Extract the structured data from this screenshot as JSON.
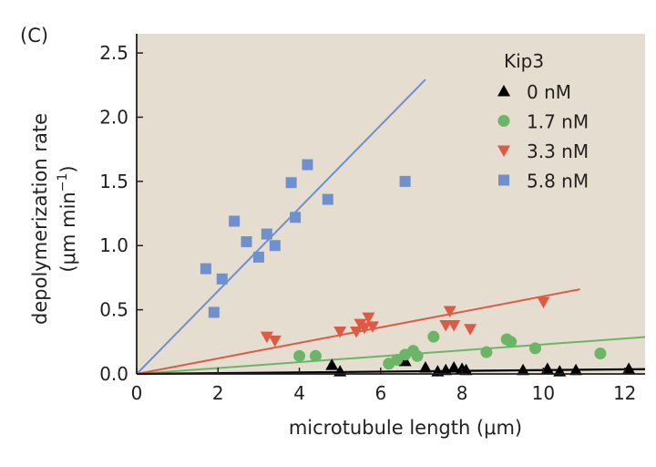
{
  "panel_label": "(C)",
  "chart_data": {
    "type": "scatter",
    "title": "",
    "xlabel": "microtubule length (μm)",
    "ylabel_line1": "depolymerization rate",
    "ylabel_line2_prefix": "(μm min",
    "ylabel_line2_sup": "−1",
    "ylabel_line2_suffix": ")",
    "xlim": [
      0,
      12.5
    ],
    "ylim": [
      0,
      2.65
    ],
    "xticks": [
      0,
      2,
      4,
      6,
      8,
      10,
      12
    ],
    "xtick_labels": [
      "0",
      "2",
      "4",
      "6",
      "8",
      "10",
      "12"
    ],
    "yticks": [
      0,
      0.5,
      1.0,
      1.5,
      2.0,
      2.5
    ],
    "ytick_labels": [
      "0.0",
      "0.5",
      "1.0",
      "1.5",
      "2.0",
      "2.5"
    ],
    "grid": false,
    "background": "#e5ddd0",
    "legend": {
      "title": "Kip3",
      "placement": "top-right"
    },
    "series": [
      {
        "name": "0 nM",
        "marker": "triangle-up",
        "color": "#000000",
        "fit_slope": 0.003,
        "fit_x_range": [
          0,
          12.5
        ],
        "points": [
          [
            4.8,
            0.07
          ],
          [
            5.0,
            0.02
          ],
          [
            6.6,
            0.1
          ],
          [
            7.1,
            0.05
          ],
          [
            7.4,
            0.02
          ],
          [
            7.6,
            0.03
          ],
          [
            7.8,
            0.05
          ],
          [
            8.0,
            0.04
          ],
          [
            8.1,
            0.03
          ],
          [
            9.5,
            0.03
          ],
          [
            10.1,
            0.04
          ],
          [
            10.4,
            0.02
          ],
          [
            10.8,
            0.03
          ],
          [
            12.1,
            0.04
          ]
        ]
      },
      {
        "name": "1.7 nM",
        "marker": "circle",
        "color": "#6cb567",
        "fit_slope": 0.023,
        "fit_x_range": [
          0,
          12.5
        ],
        "points": [
          [
            4.0,
            0.14
          ],
          [
            4.4,
            0.14
          ],
          [
            6.2,
            0.08
          ],
          [
            6.4,
            0.11
          ],
          [
            6.6,
            0.15
          ],
          [
            6.8,
            0.18
          ],
          [
            6.9,
            0.14
          ],
          [
            7.3,
            0.29
          ],
          [
            8.6,
            0.17
          ],
          [
            9.1,
            0.27
          ],
          [
            9.2,
            0.25
          ],
          [
            9.8,
            0.2
          ],
          [
            11.4,
            0.16
          ]
        ]
      },
      {
        "name": "3.3 nM",
        "marker": "triangle-down",
        "color": "#de5a44",
        "fit_slope": 0.0605,
        "fit_x_range": [
          0,
          10.9
        ],
        "points": [
          [
            3.2,
            0.29
          ],
          [
            3.4,
            0.26
          ],
          [
            5.0,
            0.33
          ],
          [
            5.4,
            0.33
          ],
          [
            5.5,
            0.39
          ],
          [
            5.6,
            0.36
          ],
          [
            5.7,
            0.44
          ],
          [
            5.8,
            0.37
          ],
          [
            7.6,
            0.38
          ],
          [
            7.7,
            0.49
          ],
          [
            7.8,
            0.38
          ],
          [
            8.2,
            0.35
          ],
          [
            10.0,
            0.56
          ]
        ]
      },
      {
        "name": "5.8 nM",
        "marker": "square",
        "color": "#6f90cc",
        "fit_slope": 0.323,
        "fit_x_range": [
          0,
          7.1
        ],
        "points": [
          [
            1.7,
            0.82
          ],
          [
            1.9,
            0.48
          ],
          [
            2.1,
            0.74
          ],
          [
            2.4,
            1.19
          ],
          [
            2.7,
            1.03
          ],
          [
            3.0,
            0.91
          ],
          [
            3.2,
            1.09
          ],
          [
            3.4,
            1.0
          ],
          [
            3.8,
            1.49
          ],
          [
            3.9,
            1.22
          ],
          [
            4.2,
            1.63
          ],
          [
            4.7,
            1.36
          ],
          [
            6.6,
            1.5
          ]
        ]
      }
    ]
  }
}
